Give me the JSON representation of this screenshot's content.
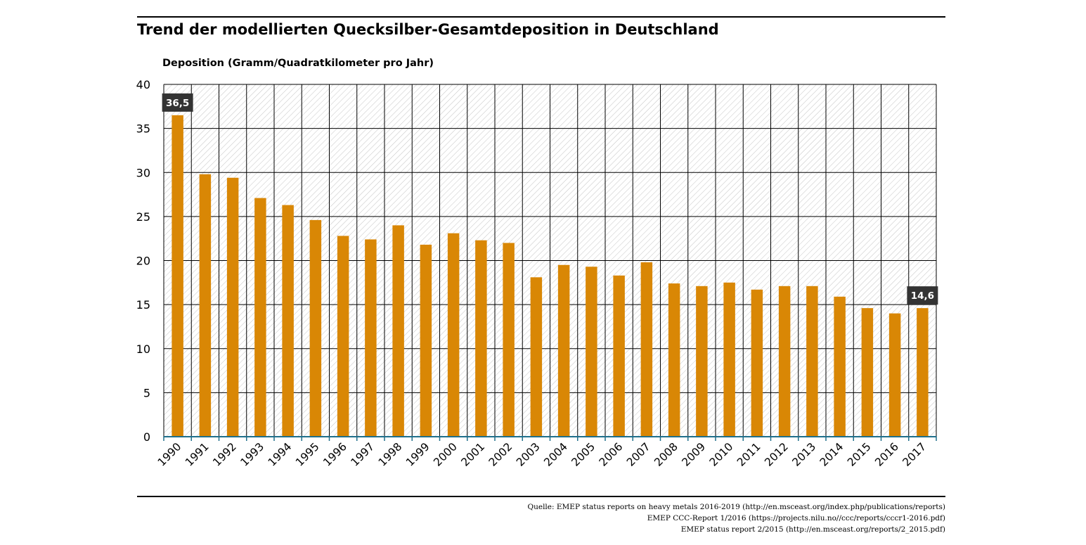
{
  "header": {
    "title": "Trend der modellierten Quecksilber-Gesamtdeposition in Deutschland"
  },
  "colors": {
    "bar": "#d98705",
    "axis": "#1f6f8b",
    "grid": "#000000",
    "hatch": "#bdbdbd",
    "label_bg": "#333333",
    "label_text": "#ffffff"
  },
  "chart_data": {
    "type": "bar",
    "title": "Trend der modellierten Quecksilber-Gesamtdeposition in Deutschland",
    "xlabel": "",
    "ylabel": "Deposition (Gramm/Quadratkilometer pro Jahr)",
    "ylim": [
      0,
      40
    ],
    "yticks": [
      0,
      5,
      10,
      15,
      20,
      25,
      30,
      35,
      40
    ],
    "categories": [
      "1990",
      "1991",
      "1992",
      "1993",
      "1994",
      "1995",
      "1996",
      "1997",
      "1998",
      "1999",
      "2000",
      "2001",
      "2002",
      "2003",
      "2004",
      "2005",
      "2006",
      "2007",
      "2008",
      "2009",
      "2010",
      "2011",
      "2012",
      "2013",
      "2014",
      "2015",
      "2016",
      "2017"
    ],
    "values": [
      36.5,
      29.8,
      29.4,
      27.1,
      26.3,
      24.6,
      22.8,
      22.4,
      24.0,
      21.8,
      23.1,
      22.3,
      22.0,
      18.1,
      19.5,
      19.3,
      18.3,
      19.8,
      17.4,
      17.1,
      17.5,
      16.7,
      17.1,
      17.1,
      15.9,
      14.6,
      14.0,
      14.6
    ],
    "grid": true,
    "annotations": [
      {
        "category": "1990",
        "text": "36,5"
      },
      {
        "category": "2017",
        "text": "14,6"
      }
    ]
  },
  "footer": {
    "source_lines": [
      "Quelle: EMEP status reports on heavy metals 2016-2019 (http://en.msceast.org/index.php/publications/reports)",
      "EMEP CCC-Report 1/2016 (https://projects.nilu.no//ccc/reports/cccr1-2016.pdf)",
      "EMEP status report 2/2015 (http://en.msceast.org/reports/2_2015.pdf)"
    ]
  }
}
